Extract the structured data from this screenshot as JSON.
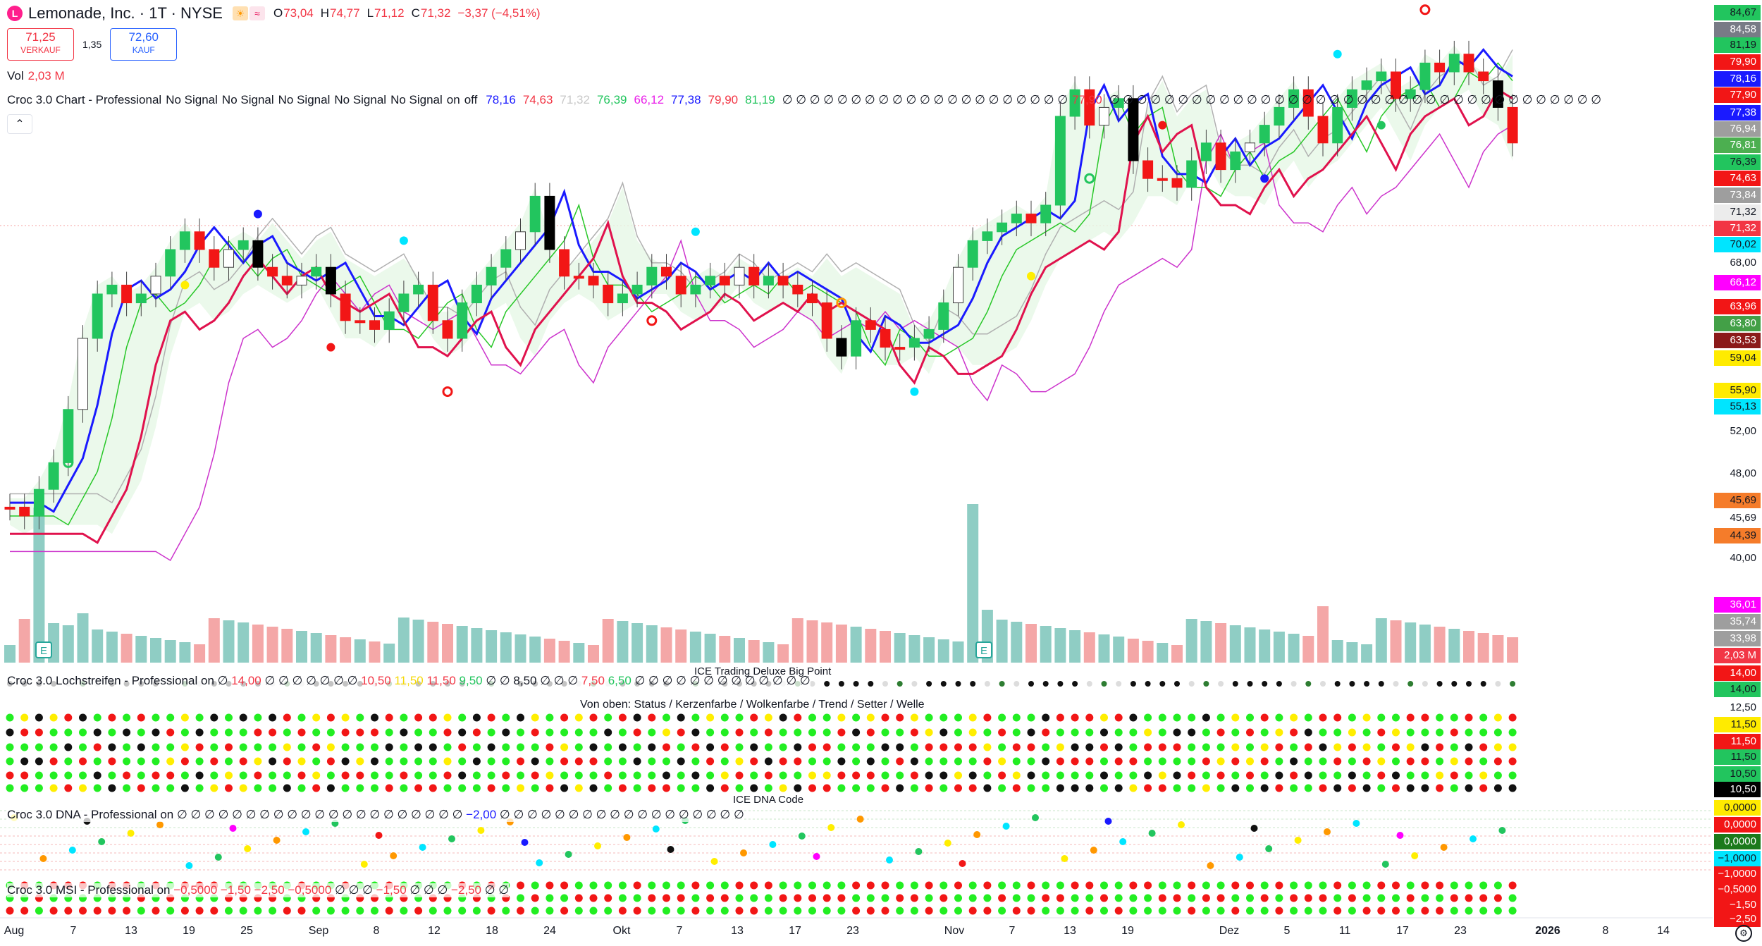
{
  "symbol": {
    "logo_letter": "L",
    "title": "Lemonade, Inc. · 1T · NYSE",
    "sun_badge": "☀",
    "wave_badge": "≈",
    "ohlc": {
      "open_label": "O",
      "open": "73,04",
      "high_label": "H",
      "high": "74,77",
      "low_label": "L",
      "low": "71,12",
      "close_label": "C",
      "close": "71,32",
      "change": "−3,37 (−4,51%)"
    }
  },
  "trade": {
    "sell_price": "71,25",
    "sell_label": "VERKAUF",
    "spread": "1,35",
    "buy_price": "72,60",
    "buy_label": "KAUF"
  },
  "volume_legend": {
    "label": "Vol",
    "value": "2,03 M"
  },
  "croc_chart": {
    "name": "Croc 3.0 Chart - Professional",
    "signals": [
      "No Signal",
      "No Signal",
      "No Signal",
      "No Signal",
      "No Signal",
      "on",
      "off"
    ],
    "values": [
      {
        "text": "78,16",
        "color": "#1a1aff"
      },
      {
        "text": "74,63",
        "color": "#f23645"
      },
      {
        "text": "71,32",
        "color": "#c8c8c8"
      },
      {
        "text": "76,39",
        "color": "#22c55e"
      },
      {
        "text": "66,12",
        "color": "#e91ee9"
      },
      {
        "text": "77,38",
        "color": "#1a1aff"
      },
      {
        "text": "79,90",
        "color": "#f23645"
      },
      {
        "text": "81,19",
        "color": "#22c55e"
      }
    ],
    "empties_a": "∅ ∅ ∅ ∅ ∅ ∅ ∅ ∅ ∅ ∅ ∅ ∅ ∅ ∅ ∅ ∅ ∅ ∅ ∅ ∅ ∅",
    "extra_value": "77,90",
    "empties_b": "∅ ∅ ∅ ∅ ∅ ∅ ∅ ∅ ∅ ∅ ∅ ∅ ∅ ∅ ∅ ∅ ∅ ∅ ∅ ∅ ∅ ∅ ∅ ∅ ∅ ∅ ∅ ∅ ∅ ∅ ∅ ∅ ∅ ∅ ∅ ∅"
  },
  "collapse_glyph": "⌃",
  "panes": {
    "lochstreifen": {
      "name": "Croc 3.0 Lochstreifen - Professional",
      "on": "on",
      "parts": [
        {
          "text": "∅",
          "color": "#131722"
        },
        {
          "text": "14,00",
          "color": "#f23645"
        },
        {
          "text": "∅ ∅ ∅ ∅ ∅ ∅ ∅",
          "color": "#131722"
        },
        {
          "text": "10,50",
          "color": "#f23645"
        },
        {
          "text": "11,50",
          "color": "#f5d90a"
        },
        {
          "text": "11,50",
          "color": "#f23645"
        },
        {
          "text": "9,50",
          "color": "#22c55e"
        },
        {
          "text": "∅ ∅",
          "color": "#131722"
        },
        {
          "text": "8,50",
          "color": "#131722"
        },
        {
          "text": "∅ ∅ ∅",
          "color": "#131722"
        },
        {
          "text": "7,50",
          "color": "#f23645"
        },
        {
          "text": "6,50",
          "color": "#22c55e"
        },
        {
          "text": "∅ ∅ ∅ ∅ ∅ ∅ ∅ ∅ ∅ ∅ ∅ ∅ ∅",
          "color": "#131722"
        }
      ],
      "title_1": "ICE Trading Deluxe Big Point",
      "title_2": "Von oben: Status / Kerzenfarbe / Wolkenfarbe / Trend / Setter / Welle"
    },
    "dna": {
      "name": "Croc 3.0 DNA - Professional",
      "on": "on",
      "empties_a": "∅ ∅ ∅ ∅ ∅ ∅ ∅ ∅ ∅ ∅ ∅ ∅ ∅ ∅ ∅ ∅ ∅ ∅ ∅ ∅ ∅",
      "value": "−2,00",
      "empties_b": "∅ ∅ ∅ ∅ ∅ ∅ ∅ ∅ ∅ ∅ ∅ ∅ ∅ ∅ ∅ ∅ ∅ ∅",
      "title": "ICE DNA Code"
    },
    "msi": {
      "name": "Croc 3.0 MSI - Professional",
      "on": "on",
      "values": "−0,5000  −1,50  −2,50  −0,5000",
      "empties_a": "∅ ∅ ∅",
      "value_b": "−1,50",
      "empties_b": "∅ ∅ ∅",
      "value_c": "−2,50",
      "empties_c": "∅ ∅"
    }
  },
  "price_scale": [
    {
      "text": "84,67",
      "bg": "#22c55e",
      "fg": "#131722"
    },
    {
      "text": "84,58",
      "bg": "#787b86",
      "fg": "#ffffff"
    },
    {
      "text": "81,19",
      "bg": "#22c55e",
      "fg": "#131722"
    },
    {
      "text": "79,90",
      "bg": "#f21616",
      "fg": "#ffffff"
    },
    {
      "text": "78,16",
      "bg": "#1a1aff",
      "fg": "#ffffff"
    },
    {
      "text": "77,90",
      "bg": "#f21616",
      "fg": "#ffffff"
    },
    {
      "text": "77,38",
      "bg": "#1a1aff",
      "fg": "#ffffff"
    },
    {
      "text": "76,94",
      "bg": "#9e9e9e",
      "fg": "#ffffff"
    },
    {
      "text": "76,81",
      "bg": "#4caf50",
      "fg": "#ffffff"
    },
    {
      "text": "76,39",
      "bg": "#22c55e",
      "fg": "#131722"
    },
    {
      "text": "74,63",
      "bg": "#f21616",
      "fg": "#ffffff"
    },
    {
      "text": "73,84",
      "bg": "#9e9e9e",
      "fg": "#ffffff"
    },
    {
      "text": "71,32",
      "bg": "#ececec",
      "fg": "#131722"
    },
    {
      "text": "71,32",
      "bg": "#f23645",
      "fg": "#ffffff"
    },
    {
      "text": "70,02",
      "bg": "#00e5ff",
      "fg": "#131722"
    },
    {
      "text": "68,00",
      "bg": "",
      "fg": "#131722"
    },
    {
      "text": "66,12",
      "bg": "#ff00ff",
      "fg": "#ffffff"
    },
    {
      "text": "63,96",
      "bg": "#f21616",
      "fg": "#ffffff"
    },
    {
      "text": "63,80",
      "bg": "#43a047",
      "fg": "#ffffff"
    },
    {
      "text": "63,53",
      "bg": "#8b1a1a",
      "fg": "#ffffff"
    },
    {
      "text": "59,04",
      "bg": "#ffeb00",
      "fg": "#131722"
    },
    {
      "text": "55,90",
      "bg": "#ffeb00",
      "fg": "#131722"
    },
    {
      "text": "55,13",
      "bg": "#00e5ff",
      "fg": "#131722"
    },
    {
      "text": "52,00",
      "bg": "",
      "fg": "#131722"
    },
    {
      "text": "48,00",
      "bg": "",
      "fg": "#131722"
    },
    {
      "text": "45,69",
      "bg": "#f57c2a",
      "fg": "#131722"
    },
    {
      "text": "45,69",
      "bg": "",
      "fg": "#131722"
    },
    {
      "text": "44,39",
      "bg": "#f57c2a",
      "fg": "#131722"
    },
    {
      "text": "40,00",
      "bg": "",
      "fg": "#131722"
    },
    {
      "text": "36,01",
      "bg": "#ff00ff",
      "fg": "#ffffff"
    },
    {
      "text": "35,74",
      "bg": "#9e9e9e",
      "fg": "#ffffff"
    },
    {
      "text": "33,98",
      "bg": "#9e9e9e",
      "fg": "#ffffff"
    },
    {
      "text": "2,03 M",
      "bg": "#f23645",
      "fg": "#ffffff"
    },
    {
      "text": "14,00",
      "bg": "#f21616",
      "fg": "#ffffff"
    },
    {
      "text": "14,00",
      "bg": "#22c55e",
      "fg": "#131722"
    },
    {
      "text": "12,50",
      "bg": "",
      "fg": "#131722"
    },
    {
      "text": "11,50",
      "bg": "#ffeb00",
      "fg": "#131722"
    },
    {
      "text": "11,50",
      "bg": "#f21616",
      "fg": "#ffffff"
    },
    {
      "text": "11,50",
      "bg": "#22c55e",
      "fg": "#131722"
    },
    {
      "text": "10,50",
      "bg": "#22c55e",
      "fg": "#131722"
    },
    {
      "text": "10,50",
      "bg": "#000000",
      "fg": "#ffffff"
    },
    {
      "text": "0,0000",
      "bg": "#ffeb00",
      "fg": "#131722"
    },
    {
      "text": "0,0000",
      "bg": "#f21616",
      "fg": "#ffffff"
    },
    {
      "text": "0,0000",
      "bg": "#1b7a1b",
      "fg": "#ffffff"
    },
    {
      "text": "−1,0000",
      "bg": "#00e5ff",
      "fg": "#131722"
    },
    {
      "text": "−1,0000",
      "bg": "#f21616",
      "fg": "#ffffff"
    },
    {
      "text": "−0,5000",
      "bg": "#f21616",
      "fg": "#ffffff"
    },
    {
      "text": "−1,50",
      "bg": "#f21616",
      "fg": "#ffffff"
    },
    {
      "text": "−2,50",
      "bg": "#f21616",
      "fg": "#ffffff"
    }
  ],
  "time_axis": [
    "Aug",
    "7",
    "13",
    "19",
    "25",
    "Sep",
    "8",
    "12",
    "18",
    "24",
    "Okt",
    "7",
    "13",
    "17",
    "23",
    "Nov",
    "7",
    "13",
    "19",
    "Dez",
    "5",
    "11",
    "17",
    "23",
    "2026",
    "8",
    "14"
  ],
  "earnings_marker": "E",
  "settings_glyph": "⚙",
  "colors": {
    "bull": "#22c55e",
    "bull_light": "#ffffff",
    "bear": "#f21616",
    "neutral": "#000000",
    "vol_bull": "#8fcdc4",
    "vol_bear": "#f4a7a7",
    "line_blue": "#1a1aff",
    "line_red": "#e0124d",
    "line_green": "#28c728",
    "line_magenta": "#cc33cc",
    "line_gray": "#b0b0b0",
    "cloud": "#e6f7e6",
    "dot_green": "#22ee22",
    "dot_red": "#f21616",
    "dot_black": "#111111",
    "dot_yellow": "#ffee00"
  }
}
